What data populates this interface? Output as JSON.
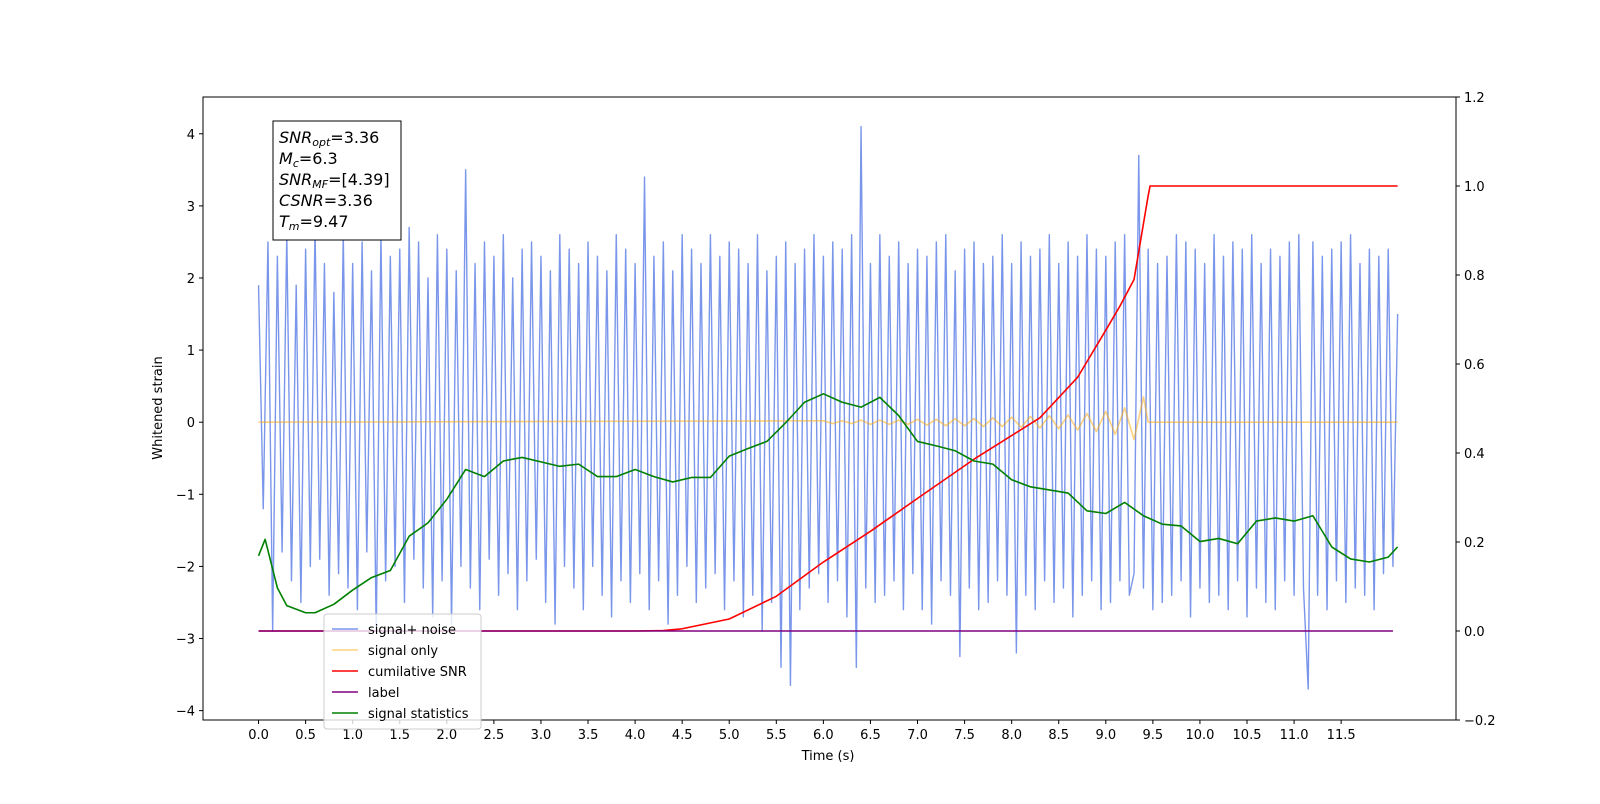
{
  "chart_data": {
    "type": "line",
    "xlabel": "Time (s)",
    "ylabel": "Whitened strain",
    "xlim": [
      -0.59,
      12.72
    ],
    "ylim": [
      -4.13,
      4.51
    ],
    "y2lim": [
      -0.2,
      1.2
    ],
    "xticks": [
      {
        "value": 0,
        "label": "0.0"
      },
      {
        "value": 0.5,
        "label": "0.5"
      },
      {
        "value": 1,
        "label": "1.0"
      },
      {
        "value": 1.5,
        "label": "1.5"
      },
      {
        "value": 2,
        "label": "2.0"
      },
      {
        "value": 2.5,
        "label": "2.5"
      },
      {
        "value": 3,
        "label": "3.0"
      },
      {
        "value": 3.5,
        "label": "3.5"
      },
      {
        "value": 4,
        "label": "4.0"
      },
      {
        "value": 4.5,
        "label": "4.5"
      },
      {
        "value": 5,
        "label": "5.0"
      },
      {
        "value": 5.5,
        "label": "5.5"
      },
      {
        "value": 6,
        "label": "6.0"
      },
      {
        "value": 6.5,
        "label": "6.5"
      },
      {
        "value": 7,
        "label": "7.0"
      },
      {
        "value": 7.5,
        "label": "7.5"
      },
      {
        "value": 8,
        "label": "8.0"
      },
      {
        "value": 8.5,
        "label": "8.5"
      },
      {
        "value": 9,
        "label": "9.0"
      },
      {
        "value": 9.5,
        "label": "9.5"
      },
      {
        "value": 10,
        "label": "10.0"
      },
      {
        "value": 10.5,
        "label": "10.5"
      },
      {
        "value": 11,
        "label": "11.0"
      },
      {
        "value": 11.5,
        "label": "11.5"
      }
    ],
    "yticks": [
      {
        "value": -4,
        "label": "−4"
      },
      {
        "value": -3,
        "label": "−3"
      },
      {
        "value": -2,
        "label": "−2"
      },
      {
        "value": -1,
        "label": "−1"
      },
      0,
      1,
      2,
      3,
      4
    ],
    "y2ticks": [
      {
        "value": -0.2,
        "label": "−0.2"
      },
      {
        "value": 0,
        "label": "0.0"
      },
      {
        "value": 0.2,
        "label": "0.2"
      },
      {
        "value": 0.4,
        "label": "0.4"
      },
      {
        "value": 0.6,
        "label": "0.6"
      },
      {
        "value": 0.8,
        "label": "0.8"
      },
      {
        "value": 1,
        "label": "1.0"
      },
      {
        "value": 1.2,
        "label": "1.2"
      }
    ],
    "grid": false,
    "legend": "lower left",
    "text_box": [
      {
        "symbol": "SNR",
        "sub": "opt",
        "text": "=3.36"
      },
      {
        "symbol": "M",
        "sub": "c",
        "text": "=6.3"
      },
      {
        "symbol": "SNR",
        "sub": "MF",
        "text": "=[4.39]"
      },
      {
        "symbol": "CSNR",
        "sub": "",
        "text": "=3.36"
      },
      {
        "symbol": "T",
        "sub": "m",
        "text": "=9.47"
      }
    ],
    "series": [
      {
        "name": "signal+ noise",
        "color": "royalblue",
        "alpha": 0.7,
        "x": [
          0,
          0.05,
          0.1,
          0.15,
          0.2,
          0.25,
          0.3,
          0.35,
          0.4,
          0.45,
          0.5,
          0.55,
          0.6,
          0.65,
          0.7,
          0.75,
          0.8,
          0.85,
          0.9,
          0.95,
          1,
          1.05,
          1.1,
          1.15,
          1.2,
          1.25,
          1.3,
          1.35,
          1.4,
          1.45,
          1.5,
          1.55,
          1.6,
          1.65,
          1.7,
          1.75,
          1.8,
          1.85,
          1.9,
          1.95,
          2,
          2.05,
          2.1,
          2.15,
          2.2,
          2.25,
          2.3,
          2.35,
          2.4,
          2.45,
          2.5,
          2.55,
          2.6,
          2.65,
          2.7,
          2.75,
          2.8,
          2.85,
          2.9,
          2.95,
          3,
          3.05,
          3.1,
          3.15,
          3.2,
          3.25,
          3.3,
          3.35,
          3.4,
          3.45,
          3.5,
          3.55,
          3.6,
          3.65,
          3.7,
          3.75,
          3.8,
          3.85,
          3.9,
          3.95,
          4,
          4.05,
          4.1,
          4.15,
          4.2,
          4.25,
          4.3,
          4.35,
          4.4,
          4.45,
          4.5,
          4.55,
          4.6,
          4.65,
          4.7,
          4.75,
          4.8,
          4.85,
          4.9,
          4.95,
          5,
          5.05,
          5.1,
          5.15,
          5.2,
          5.25,
          5.3,
          5.35,
          5.4,
          5.45,
          5.5,
          5.55,
          5.6,
          5.65,
          5.7,
          5.75,
          5.8,
          5.85,
          5.9,
          5.95,
          6,
          6.05,
          6.1,
          6.15,
          6.2,
          6.25,
          6.3,
          6.35,
          6.4,
          6.45,
          6.5,
          6.55,
          6.6,
          6.65,
          6.7,
          6.75,
          6.8,
          6.85,
          6.9,
          6.95,
          7,
          7.05,
          7.1,
          7.15,
          7.2,
          7.25,
          7.3,
          7.35,
          7.4,
          7.45,
          7.5,
          7.55,
          7.6,
          7.65,
          7.7,
          7.75,
          7.8,
          7.85,
          7.9,
          7.95,
          8,
          8.05,
          8.1,
          8.15,
          8.2,
          8.25,
          8.3,
          8.35,
          8.4,
          8.45,
          8.5,
          8.55,
          8.6,
          8.65,
          8.7,
          8.75,
          8.8,
          8.85,
          8.9,
          8.95,
          9,
          9.05,
          9.1,
          9.15,
          9.2,
          9.25,
          9.3,
          9.35,
          9.4,
          9.45,
          9.5,
          9.55,
          9.6,
          9.65,
          9.7,
          9.75,
          9.8,
          9.85,
          9.9,
          9.95,
          10,
          10.05,
          10.1,
          10.15,
          10.2,
          10.25,
          10.3,
          10.35,
          10.4,
          10.45,
          10.5,
          10.55,
          10.6,
          10.65,
          10.7,
          10.75,
          10.8,
          10.85,
          10.9,
          10.95,
          11,
          11.05,
          11.1,
          11.15,
          11.2,
          11.25,
          11.3,
          11.35,
          11.4,
          11.45,
          11.5,
          11.55,
          11.6,
          11.65,
          11.7,
          11.75,
          11.8,
          11.85,
          11.9,
          11.95,
          12,
          12.05,
          12.1
        ],
        "values": [
          1.9,
          -1.2,
          2.5,
          -2.9,
          2.3,
          -1.8,
          2.6,
          -2.2,
          1.9,
          -2.5,
          2.4,
          -2.0,
          2.7,
          -1.9,
          2.2,
          -2.4,
          1.8,
          -2.1,
          2.6,
          -2.3,
          2.2,
          -2.6,
          2.5,
          -1.8,
          2.1,
          -2.9,
          2.6,
          -2.2,
          2.3,
          -2.0,
          2.4,
          -2.5,
          2.7,
          -1.9,
          2.5,
          -2.3,
          2.0,
          -2.7,
          2.6,
          -2.2,
          2.4,
          -2.8,
          2.1,
          -2.0,
          3.5,
          -2.3,
          2.2,
          -2.6,
          2.5,
          -1.9,
          2.3,
          -2.4,
          2.6,
          -2.1,
          2.0,
          -2.6,
          2.4,
          -2.2,
          2.5,
          -1.9,
          2.3,
          -2.5,
          2.1,
          -2.8,
          2.6,
          -2.0,
          2.4,
          -2.3,
          2.2,
          -2.6,
          2.5,
          -2.0,
          2.3,
          -2.4,
          2.1,
          -2.7,
          2.6,
          -2.2,
          2.4,
          -2.5,
          2.2,
          -2.1,
          3.4,
          -2.6,
          2.3,
          -2.2,
          2.5,
          -2.8,
          2.1,
          -2.4,
          2.6,
          -2.0,
          2.4,
          -2.5,
          2.2,
          -2.3,
          2.6,
          -2.1,
          2.3,
          -2.6,
          2.5,
          -2.2,
          2.4,
          -2.7,
          2.2,
          -2.4,
          2.6,
          -2.9,
          2.1,
          -2.5,
          2.3,
          -3.4,
          2.5,
          -3.65,
          2.2,
          -2.6,
          2.4,
          -2.3,
          2.6,
          -2.1,
          2.3,
          -2.5,
          2.5,
          -2.2,
          2.4,
          -2.7,
          2.6,
          -3.4,
          4.1,
          -2.3,
          2.2,
          -2.5,
          2.6,
          -2.4,
          2.3,
          -2.2,
          2.5,
          -2.6,
          2.2,
          -2.1,
          2.4,
          -2.6,
          2.3,
          -2.8,
          2.5,
          -2.2,
          2.6,
          -2.4,
          2.1,
          -3.25,
          2.4,
          -2.3,
          2.5,
          -2.6,
          2.2,
          -2.5,
          2.3,
          -2.2,
          2.6,
          -2.4,
          2.2,
          -3.2,
          2.5,
          -2.4,
          2.3,
          -2.6,
          2.4,
          -2.2,
          2.6,
          -2.5,
          2.2,
          -2.3,
          2.5,
          -2.7,
          2.3,
          -2.4,
          2.6,
          -2.2,
          2.4,
          -2.6,
          2.3,
          -2.5,
          2.5,
          -2.2,
          2.6,
          -2.4,
          -2.1,
          3.7,
          -2.3,
          2.4,
          -2.6,
          2.2,
          -2.5,
          2.3,
          -2.4,
          2.6,
          -2.2,
          2.5,
          -2.7,
          2.4,
          -2.3,
          2.2,
          -2.5,
          2.6,
          -2.4,
          2.3,
          -2.6,
          2.5,
          -2.2,
          2.4,
          -2.7,
          2.6,
          -2.3,
          2.2,
          -2.5,
          2.4,
          -2.6,
          2.3,
          -2.2,
          2.5,
          -2.4,
          2.6,
          -2.3,
          -3.7,
          2.5,
          -2.4,
          2.3,
          -2.6,
          2.4,
          -2.2,
          2.5,
          -2.5,
          2.6,
          -2.3,
          2.2,
          -2.4,
          2.4,
          -2.6,
          2.3,
          -2.1,
          2.4,
          -2.0,
          1.5
        ]
      },
      {
        "name": "signal only",
        "color": "orange",
        "alpha": 0.5,
        "x": [
          0,
          6.0,
          6.1,
          6.2,
          6.3,
          6.4,
          6.5,
          6.6,
          6.7,
          6.8,
          6.9,
          7.0,
          7.1,
          7.2,
          7.3,
          7.4,
          7.5,
          7.6,
          7.7,
          7.8,
          7.9,
          8.0,
          8.1,
          8.2,
          8.3,
          8.4,
          8.5,
          8.6,
          8.7,
          8.8,
          8.9,
          9.0,
          9.1,
          9.2,
          9.3,
          9.4,
          9.45,
          9.5,
          12.1
        ],
        "values": [
          0,
          0.02,
          -0.02,
          0.02,
          -0.02,
          0.03,
          -0.03,
          0.03,
          -0.03,
          0.03,
          -0.03,
          0.04,
          -0.04,
          0.04,
          -0.05,
          0.05,
          -0.05,
          0.05,
          -0.06,
          0.06,
          -0.06,
          0.07,
          -0.07,
          0.08,
          -0.08,
          0.09,
          -0.09,
          0.1,
          -0.11,
          0.12,
          -0.13,
          0.15,
          -0.17,
          0.2,
          -0.24,
          0.35,
          0,
          0,
          0
        ]
      },
      {
        "name": "cumilative SNR",
        "color": "red",
        "alpha": 1,
        "axis": "y2",
        "x": [
          0,
          4.0,
          4.3,
          4.5,
          5.0,
          5.5,
          6.0,
          6.5,
          7.0,
          7.6,
          8.3,
          8.7,
          9.0,
          9.15,
          9.3,
          9.45,
          9.47,
          12.1
        ],
        "values": [
          0,
          0,
          0.001,
          0.005,
          0.027,
          0.078,
          0.155,
          0.224,
          0.298,
          0.386,
          0.479,
          0.57,
          0.676,
          0.73,
          0.79,
          0.978,
          1.0,
          1.0
        ]
      },
      {
        "name": "label",
        "color": "purple",
        "alpha": 1,
        "axis": "y2",
        "x": [
          0,
          12.05
        ],
        "values": [
          0,
          0
        ]
      },
      {
        "name": "signal statistics",
        "color": "green",
        "alpha": 1,
        "axis": "y2",
        "x": [
          0,
          0.07,
          0.2,
          0.3,
          0.5,
          0.6,
          0.8,
          1.0,
          1.2,
          1.4,
          1.6,
          1.8,
          2.0,
          2.2,
          2.4,
          2.6,
          2.8,
          3.0,
          3.2,
          3.4,
          3.6,
          3.8,
          4.0,
          4.2,
          4.4,
          4.6,
          4.8,
          5.0,
          5.2,
          5.4,
          5.6,
          5.8,
          6.0,
          6.2,
          6.4,
          6.6,
          6.8,
          7.0,
          7.2,
          7.4,
          7.6,
          7.8,
          8.0,
          8.2,
          8.4,
          8.6,
          8.8,
          9.0,
          9.2,
          9.4,
          9.6,
          9.8,
          10.0,
          10.2,
          10.4,
          10.6,
          10.8,
          11.0,
          11.2,
          11.4,
          11.6,
          11.8,
          12.0,
          12.1
        ],
        "values": [
          0.169,
          0.206,
          0.097,
          0.057,
          0.041,
          0.041,
          0.06,
          0.092,
          0.12,
          0.136,
          0.213,
          0.243,
          0.296,
          0.363,
          0.347,
          0.382,
          0.39,
          0.38,
          0.37,
          0.375,
          0.347,
          0.347,
          0.363,
          0.347,
          0.335,
          0.345,
          0.345,
          0.393,
          0.41,
          0.426,
          0.468,
          0.514,
          0.533,
          0.514,
          0.503,
          0.525,
          0.484,
          0.426,
          0.416,
          0.405,
          0.382,
          0.375,
          0.34,
          0.324,
          0.317,
          0.31,
          0.27,
          0.264,
          0.289,
          0.259,
          0.24,
          0.236,
          0.201,
          0.208,
          0.196,
          0.247,
          0.254,
          0.247,
          0.259,
          0.189,
          0.162,
          0.155,
          0.166,
          0.189
        ]
      }
    ]
  }
}
